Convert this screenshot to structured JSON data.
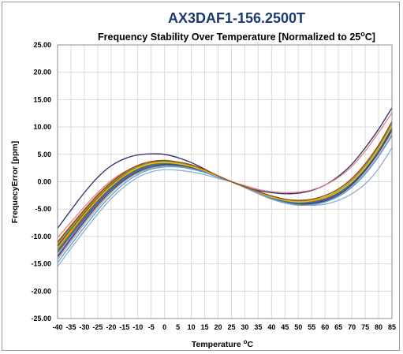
{
  "chart_data": {
    "type": "line",
    "title": "AX3DAF1-156.2500T",
    "subtitle": "Frequency Stability Over Temperature [Normalized to 25",
    "subtitle_sup": "o",
    "subtitle_end": "C]",
    "xlabel": "Temperature ",
    "xlabel_sup": "o",
    "xlabel_end": "C",
    "ylabel": "FrequecyError [ppm]",
    "xlim": [
      -40,
      85
    ],
    "ylim": [
      -25,
      25
    ],
    "grid": true,
    "x_ticks": [
      -40,
      -35,
      -30,
      -25,
      -20,
      -15,
      -10,
      -5,
      0,
      5,
      10,
      15,
      20,
      25,
      30,
      35,
      40,
      45,
      50,
      55,
      60,
      65,
      70,
      75,
      80,
      85
    ],
    "x_tick_labels": [
      "-40",
      "-35",
      "-30",
      "-25",
      "-20",
      "-15",
      "-10",
      "-5",
      "0",
      "5",
      "10",
      "15",
      "20",
      "25",
      "30",
      "35",
      "40",
      "45",
      "50",
      "55",
      "60",
      "65",
      "70",
      "75",
      "80",
      "85"
    ],
    "y_ticks": [
      25,
      20,
      15,
      10,
      5,
      0,
      -5,
      -10,
      -15,
      -20,
      -25
    ],
    "y_tick_labels": [
      "25.00",
      "20.00",
      "15.00",
      "10.00",
      "5.00",
      "0.00",
      "-5.00",
      "-10.00",
      "-15.00",
      "-20.00",
      "-25.00"
    ],
    "x": [
      -40,
      -35,
      -30,
      -25,
      -20,
      -15,
      -10,
      -5,
      0,
      5,
      10,
      15,
      20,
      25,
      30,
      35,
      40,
      45,
      50,
      55,
      60,
      65,
      70,
      75,
      80,
      85
    ],
    "series": [
      {
        "color": "#2e2a6b",
        "values": [
          -8.5,
          -5.2,
          -2.0,
          0.8,
          2.9,
          4.2,
          4.9,
          5.1,
          5.0,
          4.4,
          3.5,
          2.3,
          1.0,
          0.0,
          -0.9,
          -1.6,
          -2.0,
          -2.2,
          -2.1,
          -1.6,
          -0.6,
          1.0,
          3.2,
          6.2,
          9.6,
          13.5
        ]
      },
      {
        "color": "#8bb1d6",
        "values": [
          -15.5,
          -12.2,
          -9.0,
          -5.9,
          -3.1,
          -0.9,
          0.8,
          1.8,
          2.2,
          2.1,
          1.8,
          1.3,
          0.6,
          0.0,
          -0.8,
          -1.8,
          -2.8,
          -3.6,
          -4.1,
          -4.3,
          -4.1,
          -3.4,
          -2.2,
          -0.4,
          2.4,
          6.2
        ]
      },
      {
        "color": "#e08080",
        "values": [
          -10.2,
          -7.4,
          -4.6,
          -2.0,
          0.2,
          1.8,
          2.9,
          3.4,
          3.5,
          3.3,
          2.8,
          2.0,
          1.0,
          0.0,
          -0.7,
          -1.4,
          -1.8,
          -2.0,
          -1.9,
          -1.5,
          -0.6,
          0.8,
          2.8,
          5.6,
          9.0,
          12.6
        ]
      },
      {
        "color": "#4f81bd",
        "values": [
          -12.0,
          -9.0,
          -6.0,
          -3.2,
          -0.8,
          1.0,
          2.3,
          3.0,
          3.2,
          3.0,
          2.6,
          1.8,
          0.9,
          0.0,
          -0.9,
          -1.8,
          -2.6,
          -3.2,
          -3.5,
          -3.4,
          -2.8,
          -1.7,
          0.1,
          2.8,
          6.2,
          10.3
        ]
      },
      {
        "color": "#9bbb59",
        "values": [
          -12.8,
          -9.6,
          -6.5,
          -3.6,
          -1.1,
          0.8,
          2.2,
          3.0,
          3.3,
          3.1,
          2.6,
          1.8,
          0.9,
          0.0,
          -0.9,
          -1.8,
          -2.7,
          -3.3,
          -3.6,
          -3.5,
          -2.9,
          -1.8,
          -0.1,
          2.4,
          5.6,
          9.5
        ]
      },
      {
        "color": "#c0504d",
        "values": [
          -11.2,
          -8.2,
          -5.3,
          -2.6,
          -0.3,
          1.5,
          2.8,
          3.5,
          3.8,
          3.5,
          3.0,
          2.1,
          1.0,
          0.0,
          -0.9,
          -1.9,
          -2.7,
          -3.3,
          -3.6,
          -3.4,
          -2.8,
          -1.6,
          0.3,
          3.0,
          6.4,
          10.6
        ]
      },
      {
        "color": "#8064a2",
        "values": [
          -13.5,
          -10.2,
          -7.0,
          -4.0,
          -1.4,
          0.5,
          1.9,
          2.7,
          3.0,
          2.9,
          2.5,
          1.8,
          0.9,
          0.0,
          -1.0,
          -2.0,
          -2.9,
          -3.6,
          -4.0,
          -3.9,
          -3.3,
          -2.2,
          -0.4,
          2.2,
          5.5,
          9.6
        ]
      },
      {
        "color": "#4bacc6",
        "values": [
          -11.6,
          -8.6,
          -5.6,
          -2.9,
          -0.5,
          1.3,
          2.6,
          3.3,
          3.6,
          3.4,
          2.9,
          2.1,
          1.0,
          0.0,
          -0.9,
          -1.9,
          -2.8,
          -3.4,
          -3.7,
          -3.5,
          -2.9,
          -1.7,
          0.1,
          2.8,
          6.2,
          10.4
        ]
      },
      {
        "color": "#f79646",
        "values": [
          -12.4,
          -9.3,
          -6.2,
          -3.4,
          -0.9,
          1.0,
          2.4,
          3.2,
          3.5,
          3.3,
          2.8,
          2.0,
          1.0,
          0.0,
          -1.0,
          -2.0,
          -2.9,
          -3.5,
          -3.8,
          -3.6,
          -3.0,
          -1.8,
          0.0,
          2.6,
          6.0,
          10.1
        ]
      },
      {
        "color": "#2c4d75",
        "values": [
          -13.0,
          -9.8,
          -6.7,
          -3.8,
          -1.3,
          0.7,
          2.1,
          2.9,
          3.2,
          3.1,
          2.6,
          1.9,
          0.9,
          0.0,
          -1.0,
          -2.0,
          -2.9,
          -3.6,
          -4.0,
          -3.9,
          -3.3,
          -2.1,
          -0.3,
          2.3,
          5.7,
          9.8
        ]
      },
      {
        "color": "#772c2a",
        "values": [
          -11.8,
          -8.8,
          -5.8,
          -3.0,
          -0.6,
          1.2,
          2.6,
          3.4,
          3.7,
          3.5,
          3.0,
          2.1,
          1.0,
          0.0,
          -1.0,
          -2.0,
          -2.8,
          -3.5,
          -3.8,
          -3.6,
          -3.0,
          -1.9,
          -0.1,
          2.6,
          6.0,
          10.2
        ]
      },
      {
        "color": "#5f7530",
        "values": [
          -12.6,
          -9.5,
          -6.4,
          -3.6,
          -1.1,
          0.9,
          2.3,
          3.1,
          3.4,
          3.2,
          2.7,
          1.9,
          1.0,
          0.0,
          -1.0,
          -2.0,
          -2.8,
          -3.5,
          -3.8,
          -3.7,
          -3.1,
          -2.0,
          -0.2,
          2.4,
          5.8,
          10.0
        ]
      },
      {
        "color": "#4d3b62",
        "values": [
          -13.8,
          -10.5,
          -7.3,
          -4.3,
          -1.7,
          0.3,
          1.8,
          2.6,
          3.0,
          2.9,
          2.5,
          1.8,
          0.9,
          0.0,
          -1.0,
          -2.0,
          -3.0,
          -3.7,
          -4.1,
          -4.0,
          -3.5,
          -2.4,
          -0.6,
          2.0,
          5.3,
          9.3
        ]
      },
      {
        "color": "#b65708",
        "values": [
          -12.2,
          -9.1,
          -6.1,
          -3.3,
          -0.8,
          1.1,
          2.5,
          3.3,
          3.6,
          3.4,
          2.9,
          2.0,
          1.0,
          0.0,
          -1.0,
          -2.0,
          -2.9,
          -3.5,
          -3.8,
          -3.7,
          -3.1,
          -1.9,
          -0.1,
          2.5,
          5.9,
          10.0
        ]
      },
      {
        "color": "#2e75b6",
        "values": [
          -12.9,
          -9.7,
          -6.6,
          -3.7,
          -1.2,
          0.8,
          2.2,
          3.0,
          3.3,
          3.2,
          2.7,
          1.9,
          0.9,
          0.0,
          -1.0,
          -2.0,
          -2.9,
          -3.6,
          -3.9,
          -3.8,
          -3.2,
          -2.1,
          -0.2,
          2.4,
          5.8,
          10.0
        ]
      },
      {
        "color": "#70ad47",
        "values": [
          -11.4,
          -8.4,
          -5.5,
          -2.8,
          -0.4,
          1.4,
          2.7,
          3.4,
          3.7,
          3.5,
          2.9,
          2.1,
          1.0,
          0.0,
          -0.9,
          -1.9,
          -2.7,
          -3.3,
          -3.6,
          -3.4,
          -2.8,
          -1.6,
          0.2,
          2.9,
          6.3,
          10.5
        ]
      },
      {
        "color": "#a5a5a5",
        "values": [
          -14.2,
          -10.9,
          -7.7,
          -4.7,
          -2.0,
          0.1,
          1.6,
          2.5,
          2.9,
          2.8,
          2.4,
          1.7,
          0.9,
          0.0,
          -1.1,
          -2.2,
          -3.2,
          -3.9,
          -4.3,
          -4.2,
          -3.7,
          -2.6,
          -0.9,
          1.6,
          4.8,
          8.7
        ]
      },
      {
        "color": "#ffc000",
        "values": [
          -12.1,
          -9.0,
          -6.0,
          -3.2,
          -0.8,
          1.1,
          2.5,
          3.3,
          3.5,
          3.3,
          2.8,
          2.0,
          1.0,
          0.0,
          -0.9,
          -1.9,
          -2.8,
          -3.4,
          -3.7,
          -3.5,
          -2.9,
          -1.8,
          0.0,
          2.6,
          6.0,
          10.2
        ]
      },
      {
        "color": "#5b9bd5",
        "values": [
          -14.8,
          -11.5,
          -8.3,
          -5.2,
          -2.5,
          -0.3,
          1.3,
          2.3,
          2.7,
          2.7,
          2.3,
          1.7,
          0.8,
          0.0,
          -1.0,
          -2.1,
          -3.1,
          -3.8,
          -4.2,
          -4.2,
          -3.7,
          -2.7,
          -1.0,
          1.4,
          4.6,
          8.4
        ]
      },
      {
        "color": "#9e480e",
        "values": [
          -11.0,
          -8.0,
          -5.1,
          -2.4,
          -0.1,
          1.7,
          3.0,
          3.7,
          3.9,
          3.6,
          3.1,
          2.2,
          1.1,
          0.0,
          -0.9,
          -1.8,
          -2.6,
          -3.2,
          -3.4,
          -3.2,
          -2.5,
          -1.3,
          0.6,
          3.3,
          6.7,
          11.0
        ]
      }
    ]
  }
}
